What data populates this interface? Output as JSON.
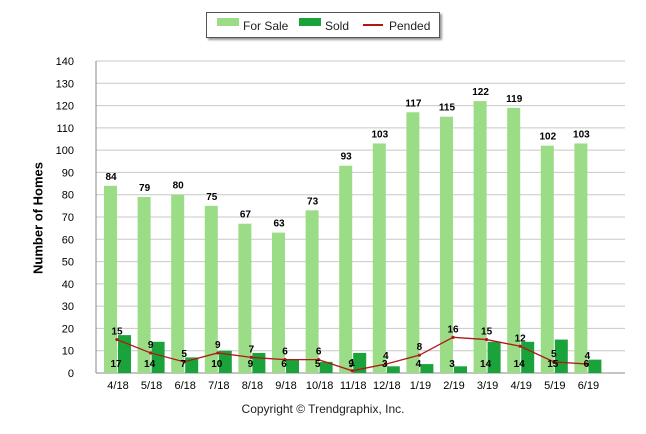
{
  "legend": {
    "for_sale": "For Sale",
    "sold": "Sold",
    "pended": "Pended"
  },
  "footer": "Copyright © Trendgraphix, Inc.",
  "colors": {
    "for_sale": "#9bdc86",
    "sold": "#1aa33a",
    "pended": "#b01818",
    "grid": "#c8c8c8"
  },
  "chart_data": {
    "type": "bar",
    "title": "",
    "xlabel": "",
    "ylabel": "Number of Homes",
    "ylim": [
      0,
      140
    ],
    "yticks": [
      0,
      10,
      20,
      30,
      40,
      50,
      60,
      70,
      80,
      90,
      100,
      110,
      120,
      130,
      140
    ],
    "grid": true,
    "legend_position": "top-center",
    "categories": [
      "4/18",
      "5/18",
      "6/18",
      "7/18",
      "8/18",
      "9/18",
      "10/18",
      "11/18",
      "12/18",
      "1/19",
      "2/19",
      "3/19",
      "4/19",
      "5/19",
      "6/19"
    ],
    "series": [
      {
        "name": "For Sale",
        "type": "bar",
        "values": [
          84,
          79,
          80,
          75,
          67,
          63,
          73,
          93,
          103,
          117,
          115,
          122,
          119,
          102,
          103
        ]
      },
      {
        "name": "Sold",
        "type": "bar",
        "values": [
          17,
          14,
          7,
          10,
          9,
          6,
          5,
          9,
          3,
          4,
          3,
          14,
          14,
          15,
          6
        ]
      },
      {
        "name": "Pended",
        "type": "line",
        "values": [
          15,
          9,
          5,
          9,
          7,
          6,
          6,
          1,
          4,
          8,
          16,
          15,
          12,
          5,
          4
        ]
      }
    ]
  }
}
